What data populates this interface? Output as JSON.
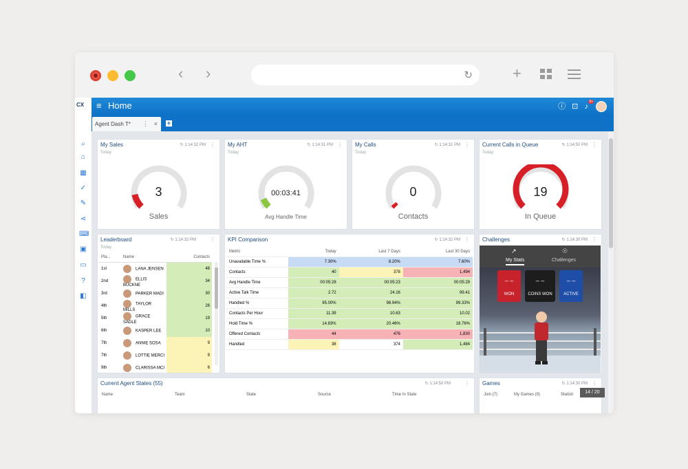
{
  "app": {
    "logo": "CX",
    "page_title": "Home",
    "tab_label": "Agent Dash T*",
    "notification_badge": "9+"
  },
  "cards": {
    "sales": {
      "title": "My Sales",
      "subtitle": "Today",
      "time": "1:14:32 PM",
      "value": "3",
      "label": "Sales",
      "fill": 0.12,
      "color": "#d61f26"
    },
    "aht": {
      "title": "My AHT",
      "subtitle": "Today",
      "time": "1:14:31 PM",
      "value": "00:03:41",
      "label": "Avg Handle Time",
      "fill": 0.08,
      "color": "#8dc63f"
    },
    "calls": {
      "title": "My Calls",
      "subtitle": "Today",
      "time": "1:14:31 PM",
      "value": "0",
      "label": "Contacts",
      "fill": 0.03,
      "color": "#d61f26"
    },
    "queue": {
      "title": "Current Calls in Queue",
      "subtitle": "Today",
      "time": "1:14:50 PM",
      "value": "19",
      "label": "In Queue",
      "fill": 1.0,
      "color": "#d61f26"
    }
  },
  "leaderboard": {
    "title": "Leaderboard",
    "subtitle": "Today",
    "time": "1:14:32 PM",
    "headers": [
      "Pla...",
      "Name",
      "Contacts"
    ],
    "rows": [
      {
        "place": "1st",
        "name": "LANA JENSEN",
        "contacts": "48",
        "color": "green"
      },
      {
        "place": "2nd",
        "name": "ELLIS BUCKNE",
        "contacts": "34",
        "color": "green"
      },
      {
        "place": "3rd",
        "name": "PARKER MADI",
        "contacts": "30",
        "color": "green"
      },
      {
        "place": "4th",
        "name": "TAYLOR MILLS",
        "contacts": "26",
        "color": "green"
      },
      {
        "place": "5th",
        "name": "GRACE SADLE",
        "contacts": "19",
        "color": "green"
      },
      {
        "place": "6th",
        "name": "KASPER LEE",
        "contacts": "10",
        "color": "green"
      },
      {
        "place": "7th",
        "name": "ANNIE SOSA",
        "contacts": "9",
        "color": "yellow"
      },
      {
        "place": "7th",
        "name": "LOTTIE MERCI",
        "contacts": "9",
        "color": "yellow"
      },
      {
        "place": "9th",
        "name": "CLARISSA MCI",
        "contacts": "6",
        "color": "yellow"
      }
    ]
  },
  "kpi": {
    "title": "KPI Comparison",
    "time": "1:14:32 PM",
    "headers": [
      "Metric",
      "Today",
      "Last 7 Days",
      "Last 30 Days"
    ],
    "rows": [
      {
        "metric": "Unavailable Time %",
        "today": "7.30%",
        "d7": "8.20%",
        "d30": "7.60%",
        "c": [
          "blue",
          "blue",
          "blue"
        ]
      },
      {
        "metric": "Contacts",
        "today": "40",
        "d7": "378",
        "d30": "1,494",
        "c": [
          "green",
          "yellow",
          "red"
        ]
      },
      {
        "metric": "Avg Handle Time",
        "today": "00:05:28",
        "d7": "00:05:23",
        "d30": "00:05:29",
        "c": [
          "green",
          "green",
          "green"
        ]
      },
      {
        "metric": "Active Talk Time",
        "today": "2.72",
        "d7": "24.16",
        "d30": "99.41",
        "c": [
          "green",
          "green",
          "green"
        ]
      },
      {
        "metric": "Handled %",
        "today": "95.00%",
        "d7": "98.94%",
        "d30": "99.33%",
        "c": [
          "green",
          "green",
          "green"
        ]
      },
      {
        "metric": "Contacts Per Hour",
        "today": "11.39",
        "d7": "10.63",
        "d30": "10.02",
        "c": [
          "green",
          "green",
          "green"
        ]
      },
      {
        "metric": "Hold Time %",
        "today": "14.83%",
        "d7": "20.46%",
        "d30": "18.76%",
        "c": [
          "green",
          "green",
          "green"
        ]
      },
      {
        "metric": "Offered Contacts",
        "today": "44",
        "d7": "476",
        "d30": "1,830",
        "c": [
          "red",
          "red",
          "red"
        ]
      },
      {
        "metric": "Handled",
        "today": "38",
        "d7": "374",
        "d30": "1,484",
        "c": [
          "yellow",
          "",
          "green"
        ]
      }
    ]
  },
  "challenges": {
    "title": "Challenges",
    "time": "1:14:30 PM",
    "tab_mystats": "My Stats",
    "tab_challenges": "Challenges",
    "won_label": "WON",
    "coins_label": "COINS WON",
    "active_label": "ACTIVE",
    "dash": "– –"
  },
  "agent_states": {
    "title": "Current Agent States (55)",
    "time": "1:14:50 PM",
    "headers": [
      "Name",
      "Team",
      "State",
      "Source",
      "Time In State"
    ]
  },
  "games": {
    "title": "Games",
    "time": "1:14:30 PM",
    "tabs": [
      "Join (7)",
      "My Games (9)",
      "Statisti"
    ]
  },
  "pager": "14 / 20"
}
